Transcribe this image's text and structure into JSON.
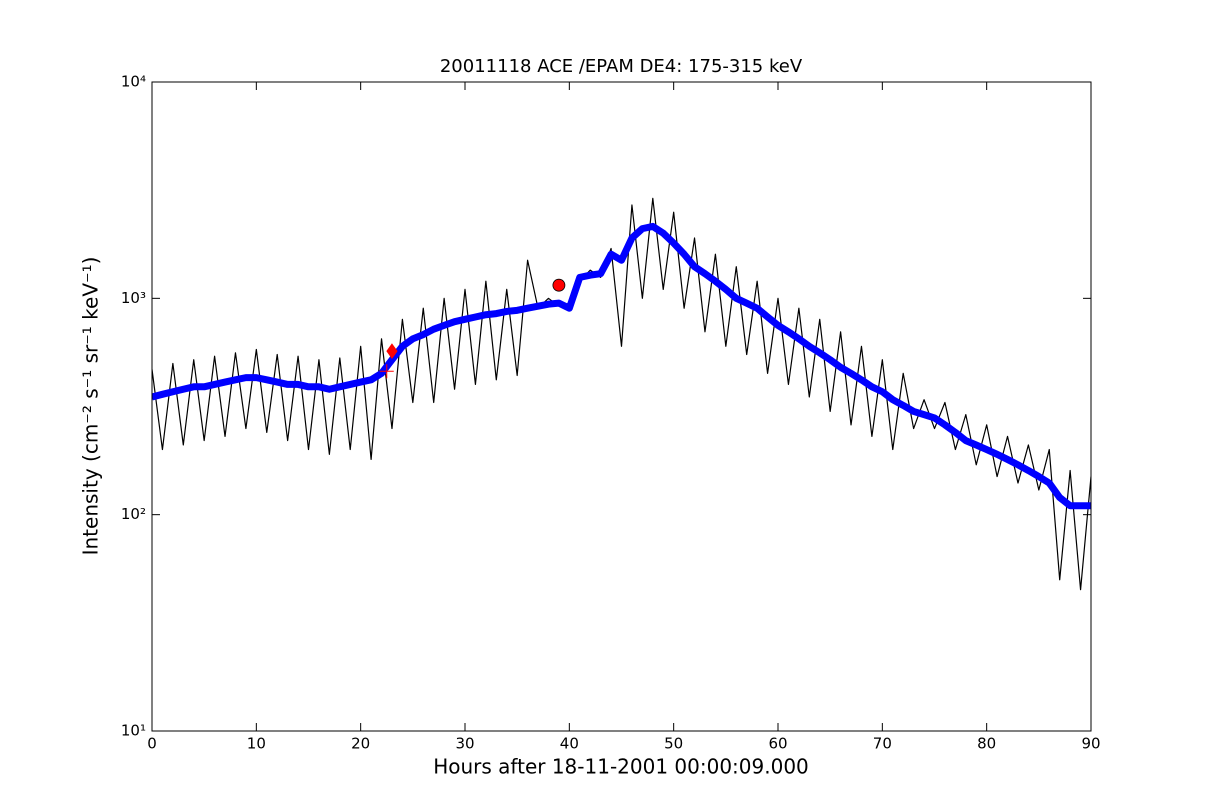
{
  "chart_data": {
    "type": "line",
    "title": "20011118 ACE /EPAM DE4: 175-315 keV",
    "xlabel": "Hours after 18-11-2001 00:00:09.000",
    "ylabel": "Intensity (cm⁻² s⁻¹ sr⁻¹ keV⁻¹)",
    "xlim": [
      0,
      90
    ],
    "xticks": [
      0,
      10,
      20,
      30,
      40,
      50,
      60,
      70,
      80,
      90
    ],
    "ylim": [
      10,
      10000
    ],
    "yticks": [
      {
        "value": 10,
        "label": "10¹"
      },
      {
        "value": 100,
        "label": "10²"
      },
      {
        "value": 1000,
        "label": "10³"
      },
      {
        "value": 10000,
        "label": "10⁴"
      }
    ],
    "log_y": true,
    "x": [
      0,
      1,
      2,
      3,
      4,
      5,
      6,
      7,
      8,
      9,
      10,
      11,
      12,
      13,
      14,
      15,
      16,
      17,
      18,
      19,
      20,
      21,
      22,
      23,
      24,
      25,
      26,
      27,
      28,
      29,
      30,
      31,
      32,
      33,
      34,
      35,
      36,
      37,
      38,
      39,
      40,
      41,
      42,
      43,
      44,
      45,
      46,
      47,
      48,
      49,
      50,
      51,
      52,
      53,
      54,
      55,
      56,
      57,
      58,
      59,
      60,
      61,
      62,
      63,
      64,
      65,
      66,
      67,
      68,
      69,
      70,
      71,
      72,
      73,
      74,
      75,
      76,
      77,
      78,
      79,
      80,
      81,
      82,
      83,
      84,
      85,
      86,
      87,
      88,
      89,
      90
    ],
    "series": [
      {
        "color": "#000000",
        "width": 1.2,
        "values": [
          470,
          200,
          500,
          210,
          520,
          220,
          540,
          230,
          560,
          250,
          580,
          240,
          550,
          220,
          540,
          200,
          520,
          190,
          530,
          200,
          600,
          180,
          650,
          250,
          800,
          330,
          900,
          330,
          1000,
          380,
          1100,
          400,
          1200,
          420,
          1100,
          440,
          1500,
          900,
          1000,
          920,
          950,
          1200,
          1350,
          1250,
          1700,
          600,
          2700,
          1000,
          2900,
          1100,
          2500,
          900,
          1900,
          700,
          1600,
          600,
          1400,
          550,
          1200,
          450,
          1000,
          400,
          900,
          350,
          800,
          300,
          700,
          260,
          600,
          230,
          520,
          200,
          450,
          250,
          340,
          250,
          330,
          200,
          290,
          170,
          260,
          150,
          230,
          140,
          210,
          130,
          200,
          50,
          160,
          45,
          150
        ]
      },
      {
        "color": "#0000ff",
        "width": 7,
        "values": [
          350,
          360,
          370,
          380,
          390,
          390,
          400,
          410,
          420,
          430,
          430,
          420,
          410,
          400,
          400,
          390,
          390,
          380,
          390,
          400,
          410,
          420,
          450,
          520,
          600,
          650,
          680,
          720,
          750,
          780,
          800,
          820,
          840,
          850,
          870,
          880,
          900,
          920,
          940,
          950,
          900,
          1250,
          1280,
          1300,
          1600,
          1500,
          1900,
          2100,
          2150,
          2000,
          1800,
          1600,
          1400,
          1300,
          1200,
          1100,
          1000,
          950,
          900,
          820,
          750,
          700,
          650,
          600,
          560,
          520,
          480,
          450,
          420,
          390,
          370,
          340,
          320,
          300,
          290,
          280,
          260,
          240,
          220,
          210,
          200,
          190,
          180,
          170,
          160,
          150,
          140,
          120,
          110,
          110,
          110
        ]
      }
    ],
    "markers": [
      {
        "x": 22.5,
        "value": 460,
        "shape": "plus",
        "color": "#ff0000"
      },
      {
        "x": 23,
        "value": 570,
        "shape": "diamond",
        "color": "#ff0000"
      },
      {
        "x": 39,
        "value": 1150,
        "shape": "circle",
        "color": "#ff0000"
      }
    ]
  }
}
